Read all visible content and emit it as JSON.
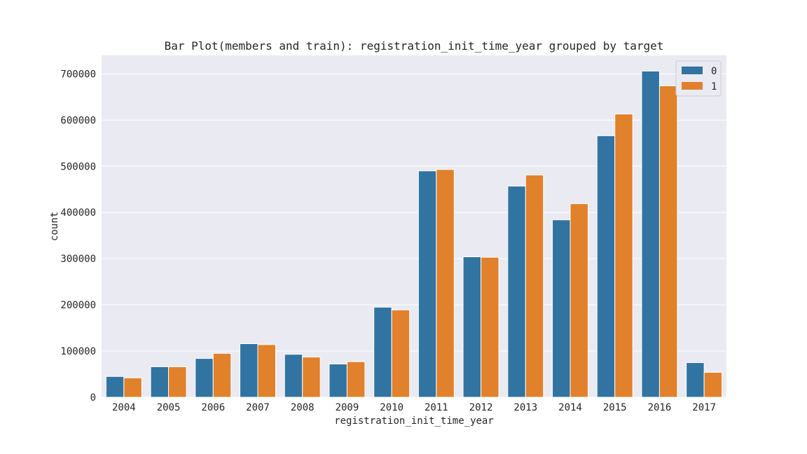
{
  "chart_data": {
    "type": "bar",
    "title": "Bar Plot(members and train): registration_init_time_year grouped by target",
    "xlabel": "registration_init_time_year",
    "ylabel": "count",
    "categories": [
      "2004",
      "2005",
      "2006",
      "2007",
      "2008",
      "2009",
      "2010",
      "2011",
      "2012",
      "2013",
      "2014",
      "2015",
      "2016",
      "2017"
    ],
    "series": [
      {
        "name": "0",
        "color": "#3274a1",
        "values": [
          45000,
          66000,
          84000,
          116000,
          93000,
          72000,
          195000,
          490000,
          304000,
          457000,
          384000,
          566000,
          706000,
          75000
        ]
      },
      {
        "name": "1",
        "color": "#e1812c",
        "values": [
          42000,
          66000,
          95000,
          114000,
          87000,
          77000,
          189000,
          493000,
          303000,
          481000,
          419000,
          613000,
          674000,
          54000
        ]
      }
    ],
    "ylim": [
      0,
      740000
    ],
    "yticks": [
      0,
      100000,
      200000,
      300000,
      400000,
      500000,
      600000,
      700000
    ],
    "grid": true,
    "legend": "top-right",
    "background": "#eaeaf2"
  }
}
